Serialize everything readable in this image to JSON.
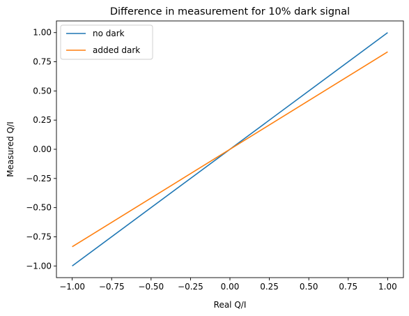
{
  "chart_data": {
    "type": "line",
    "title": "Difference in measurement for 10% dark signal",
    "xlabel": "Real Q/I",
    "ylabel": "Measured Q/I",
    "xlim": [
      -1.1,
      1.1
    ],
    "ylim": [
      -1.1,
      1.1
    ],
    "xticks": [
      -1.0,
      -0.75,
      -0.5,
      -0.25,
      0.0,
      0.25,
      0.5,
      0.75,
      1.0
    ],
    "xtick_labels": [
      "−1.00",
      "−0.75",
      "−0.50",
      "−0.25",
      "0.00",
      "0.25",
      "0.50",
      "0.75",
      "1.00"
    ],
    "yticks": [
      -1.0,
      -0.75,
      -0.5,
      -0.25,
      0.0,
      0.25,
      0.5,
      0.75,
      1.0
    ],
    "ytick_labels": [
      "−1.00",
      "−0.75",
      "−0.50",
      "−0.25",
      "0.00",
      "0.25",
      "0.50",
      "0.75",
      "1.00"
    ],
    "grid": false,
    "legend_position": "top-left",
    "series": [
      {
        "name": "no dark",
        "color": "#1f77b4",
        "x": [
          -1.0,
          1.0
        ],
        "y": [
          -1.0,
          1.0
        ]
      },
      {
        "name": "added dark",
        "color": "#ff7f0e",
        "x": [
          -1.0,
          1.0
        ],
        "y": [
          -0.835,
          0.835
        ]
      }
    ]
  }
}
